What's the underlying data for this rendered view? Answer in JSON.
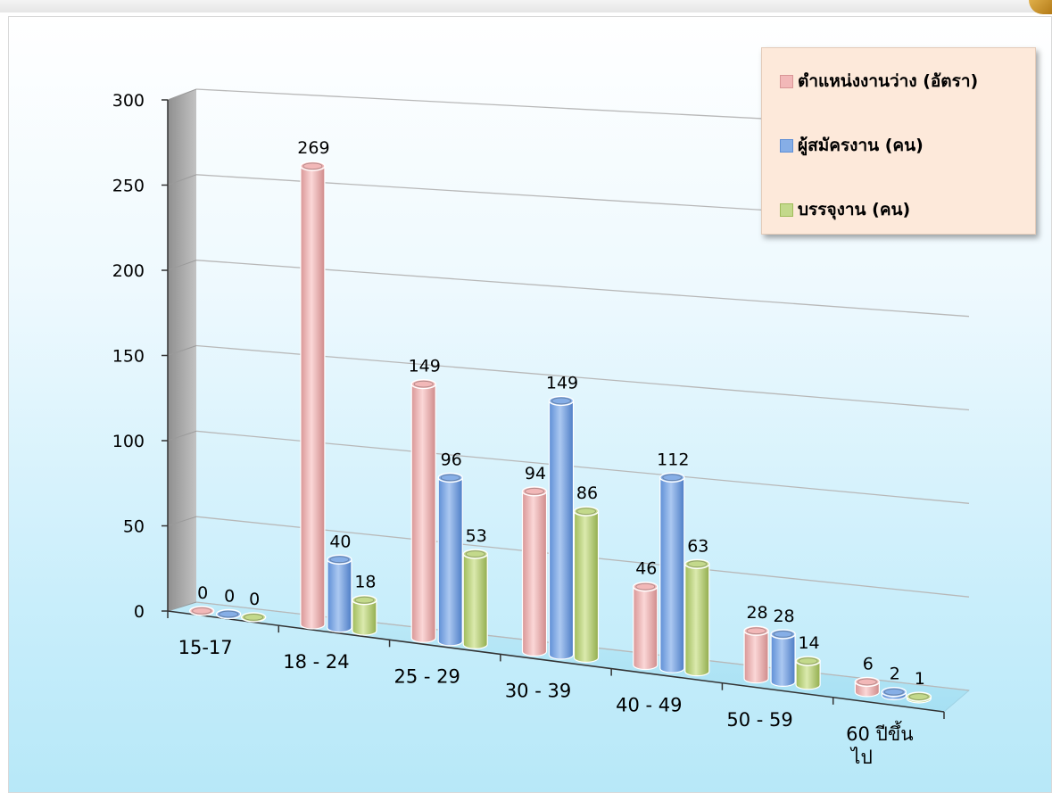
{
  "chart_data": {
    "type": "bar",
    "categories": [
      "15-17",
      "18 - 24",
      "25 - 29",
      "30 - 39",
      "40 - 49",
      "50 - 59",
      "60 ปีขึ้น ไป"
    ],
    "series": [
      {
        "name": "ตำแหน่งงานว่าง (อัตรา)",
        "values": [
          0,
          269,
          149,
          94,
          46,
          28,
          6
        ],
        "color": "#f2b8b8"
      },
      {
        "name": "ผู้สมัครงาน (คน)",
        "values": [
          0,
          40,
          96,
          149,
          112,
          28,
          2
        ],
        "color": "#86aee6"
      },
      {
        "name": "บรรจุงาน (คน)",
        "values": [
          0,
          18,
          53,
          86,
          63,
          14,
          1
        ],
        "color": "#c3d98b"
      }
    ],
    "ylim": [
      0,
      300
    ],
    "yticks": [
      0,
      50,
      100,
      150,
      200,
      250,
      300
    ],
    "grid": true,
    "legend": "top-right",
    "style": "3d-cylinder"
  }
}
